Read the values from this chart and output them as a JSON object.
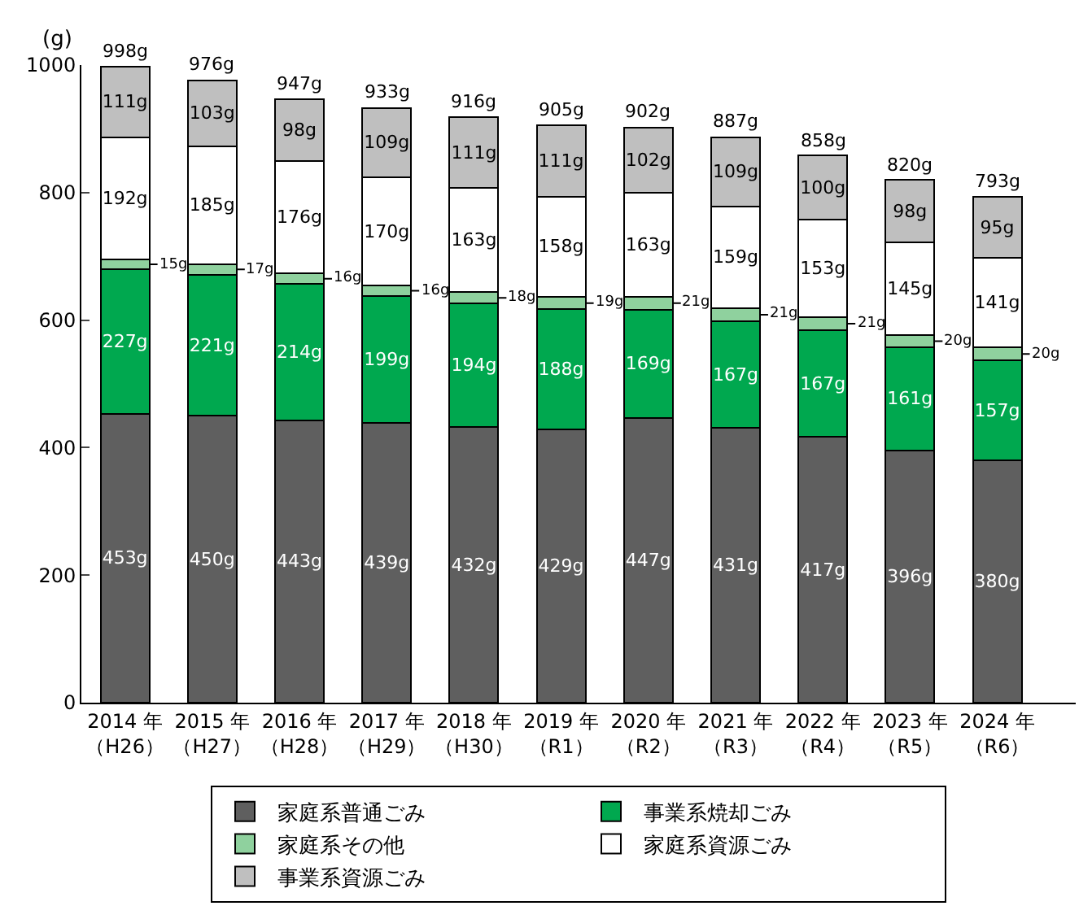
{
  "chart_data": {
    "type": "bar",
    "stacked": true,
    "ylabel": "(g)",
    "categories": [
      "2014 年（H26）",
      "2015 年（H27）",
      "2016 年（H28）",
      "2017 年（H29）",
      "2018 年（H30）",
      "2019 年（R1）",
      "2020 年（R2）",
      "2021 年（R3）",
      "2022 年（R4）",
      "2023 年（R5）",
      "2024 年（R6）"
    ],
    "series": [
      {
        "name": "家庭系普通ごみ",
        "color": "#5f5f5f",
        "values": [
          453,
          450,
          443,
          439,
          432,
          429,
          447,
          431,
          417,
          396,
          380
        ],
        "value_labels": [
          "453g",
          "450g",
          "443g",
          "439g",
          "432g",
          "429g",
          "447g",
          "431g",
          "417g",
          "396g",
          "380g"
        ]
      },
      {
        "name": "事業系焼却ごみ",
        "color": "#00a84f",
        "values": [
          227,
          221,
          214,
          199,
          194,
          188,
          169,
          167,
          167,
          161,
          157
        ],
        "value_labels": [
          "227g",
          "221g",
          "214g",
          "199g",
          "194g",
          "188g",
          "169g",
          "167g",
          "167g",
          "161g",
          "157g"
        ]
      },
      {
        "name": "家庭系その他",
        "color": "#8fd19e",
        "values": [
          15,
          17,
          16,
          16,
          18,
          19,
          21,
          21,
          21,
          20,
          20
        ],
        "value_labels": [
          "15g",
          "17g",
          "16g",
          "16g",
          "18g",
          "19g",
          "21g",
          "21g",
          "21g",
          "20g",
          "20g"
        ]
      },
      {
        "name": "家庭系資源ごみ",
        "color": "#ffffff",
        "values": [
          192,
          185,
          176,
          170,
          163,
          158,
          163,
          159,
          153,
          145,
          141
        ],
        "value_labels": [
          "192g",
          "185g",
          "176g",
          "170g",
          "163g",
          "158g",
          "163g",
          "159g",
          "153g",
          "145g",
          "141g"
        ]
      },
      {
        "name": "事業系資源ごみ",
        "color": "#bfbfbf",
        "values": [
          111,
          103,
          98,
          109,
          111,
          111,
          102,
          109,
          100,
          98,
          95
        ],
        "value_labels": [
          "111g",
          "103g",
          "98g",
          "109g",
          "111g",
          "111g",
          "102g",
          "109g",
          "100g",
          "98g",
          "95g"
        ]
      }
    ],
    "totals": [
      "998g",
      "976g",
      "947g",
      "933g",
      "916g",
      "905g",
      "902g",
      "887g",
      "858g",
      "820g",
      "793g"
    ],
    "ylim": [
      0,
      1000
    ],
    "yticks": [
      0,
      200,
      400,
      600,
      800,
      1000
    ],
    "legend": "bottom"
  }
}
